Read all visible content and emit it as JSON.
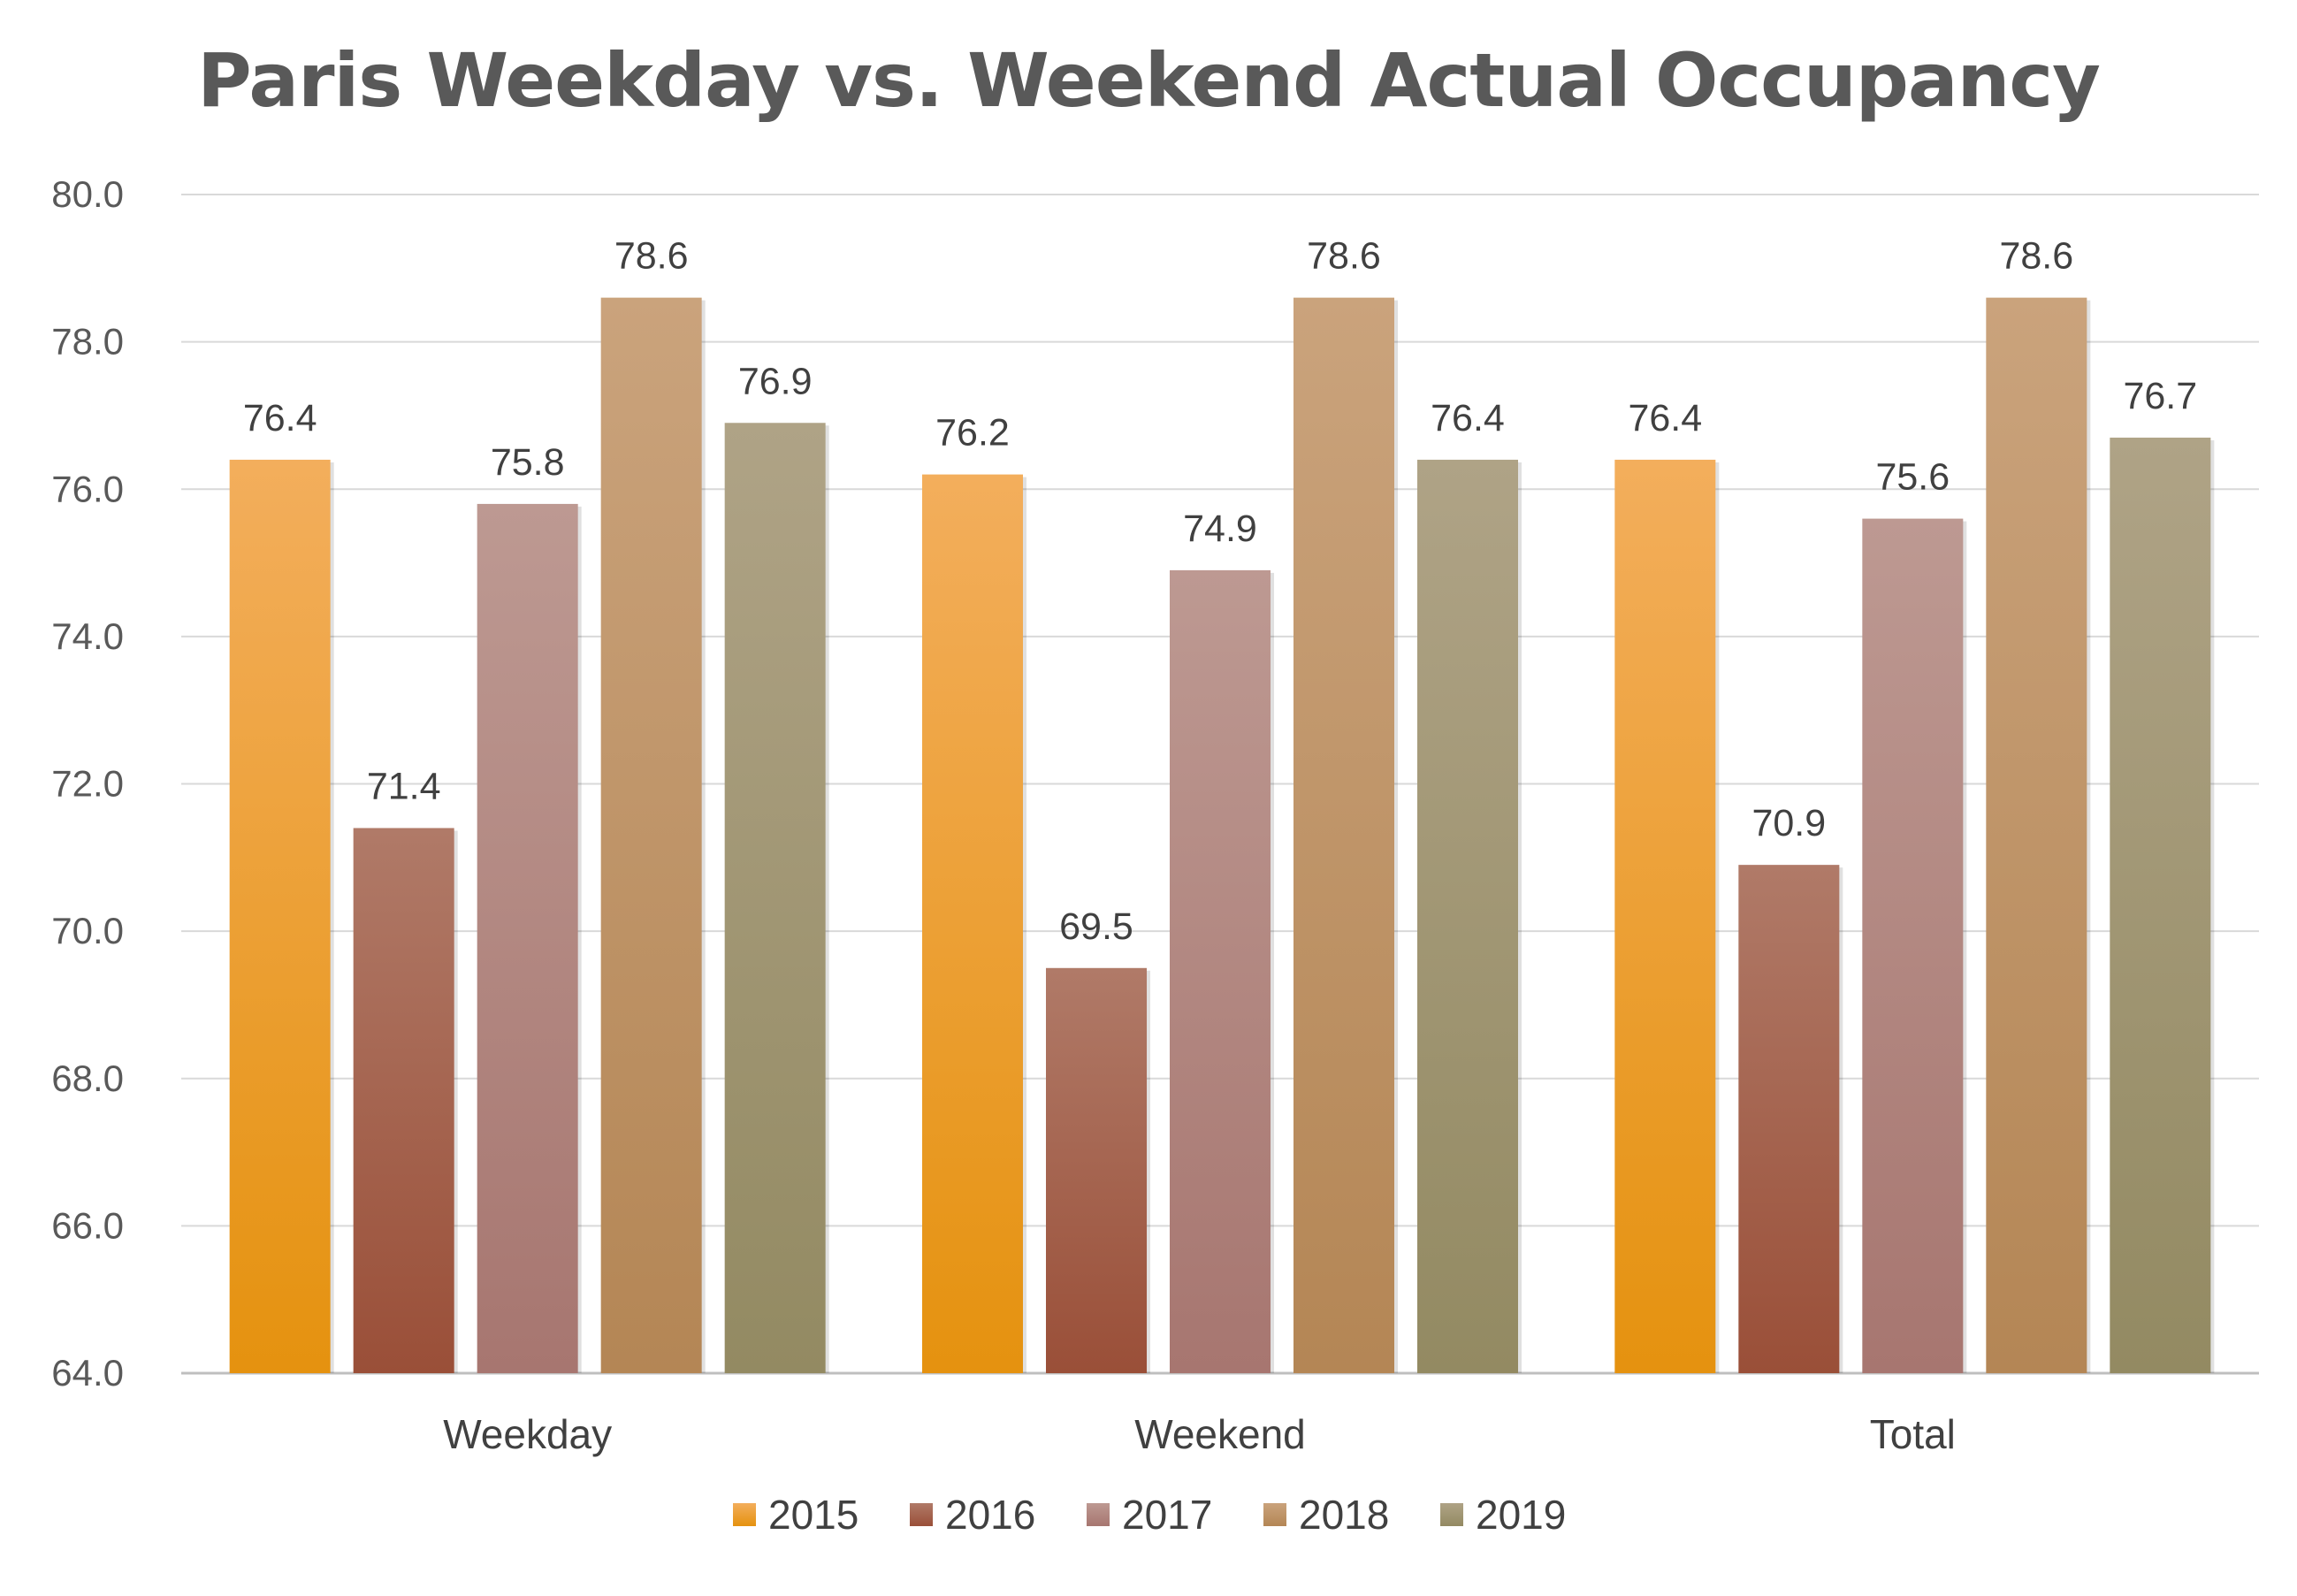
{
  "chart_data": {
    "type": "bar",
    "title": "Paris Weekday vs. Weekend Actual Occupancy",
    "categories": [
      "Weekday",
      "Weekend",
      "Total"
    ],
    "series": [
      {
        "name": "2015",
        "values": [
          76.4,
          76.2,
          76.4
        ],
        "labels": [
          "76.4",
          "76.2",
          "76.4"
        ],
        "color_top": "#f3ae5c",
        "color_bottom": "#e5920f"
      },
      {
        "name": "2016",
        "values": [
          71.4,
          69.5,
          70.9
        ],
        "labels": [
          "71.4",
          "69.5",
          "70.9"
        ],
        "color_top": "#b07a68",
        "color_bottom": "#9a4f38"
      },
      {
        "name": "2017",
        "values": [
          75.8,
          74.9,
          75.6
        ],
        "labels": [
          "75.8",
          "74.9",
          "75.6"
        ],
        "color_top": "#bd9992",
        "color_bottom": "#a77670"
      },
      {
        "name": "2018",
        "values": [
          78.6,
          78.6,
          78.6
        ],
        "labels": [
          "78.6",
          "78.6",
          "78.6"
        ],
        "color_top": "#caa37c",
        "color_bottom": "#b48655"
      },
      {
        "name": "2019",
        "values": [
          76.9,
          76.4,
          76.7
        ],
        "labels": [
          "76.9",
          "76.4",
          "76.7"
        ],
        "color_top": "#afa386",
        "color_bottom": "#938a62"
      }
    ],
    "yticks": [
      "80.0",
      "78.0",
      "76.0",
      "74.0",
      "72.0",
      "70.0",
      "68.0",
      "66.0",
      "64.0"
    ],
    "ylim": [
      64,
      80
    ],
    "ystep": 2,
    "grid": true,
    "legend": "bottom-center",
    "xlabel": "",
    "ylabel": ""
  }
}
